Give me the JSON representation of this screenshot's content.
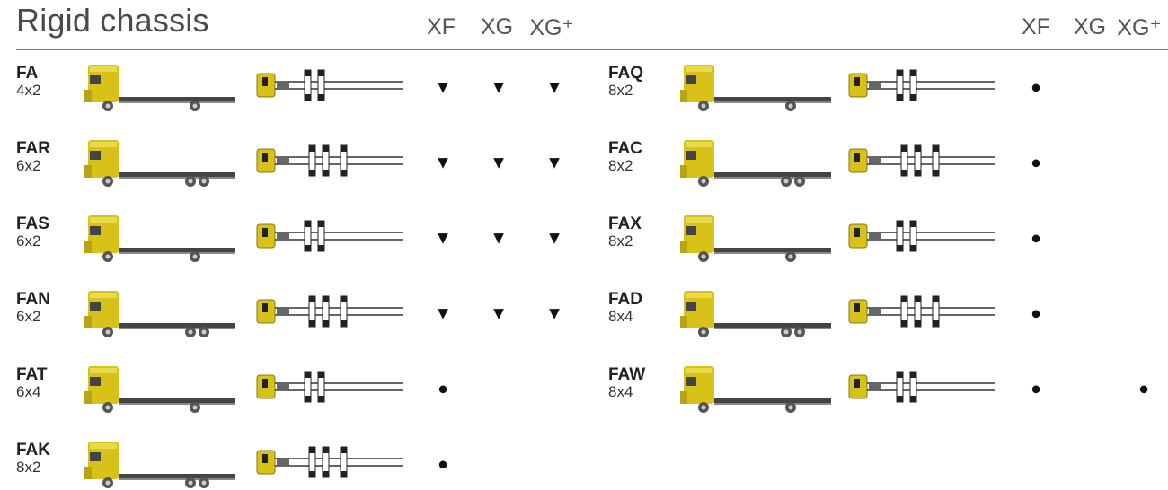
{
  "header": {
    "title": "Rigid chassis",
    "columns_left": [
      "XF",
      "XG",
      "XG⁺"
    ],
    "columns_right": [
      "XF",
      "XG",
      "XG⁺"
    ]
  },
  "left": [
    {
      "code": "FA",
      "axles": "4x2",
      "availability": [
        "▼",
        "▼",
        "▼"
      ]
    },
    {
      "code": "FAR",
      "axles": "6x2",
      "availability": [
        "▼",
        "▼",
        "▼"
      ]
    },
    {
      "code": "FAS",
      "axles": "6x2",
      "availability": [
        "▼",
        "▼",
        "▼"
      ]
    },
    {
      "code": "FAN",
      "axles": "6x2",
      "availability": [
        "▼",
        "▼",
        "▼"
      ]
    },
    {
      "code": "FAT",
      "axles": "6x4",
      "availability": [
        "●",
        null,
        null
      ]
    },
    {
      "code": "FAK",
      "axles": "8x2",
      "availability": [
        "●",
        null,
        null
      ]
    }
  ],
  "right": [
    {
      "code": "FAQ",
      "axles": "8x2",
      "availability": [
        "●",
        null,
        null
      ]
    },
    {
      "code": "FAC",
      "axles": "8x2",
      "availability": [
        "●",
        null,
        null
      ]
    },
    {
      "code": "FAX",
      "axles": "8x2",
      "availability": [
        "●",
        null,
        null
      ]
    },
    {
      "code": "FAD",
      "axles": "8x4",
      "availability": [
        "●",
        null,
        null
      ]
    },
    {
      "code": "FAW",
      "axles": "8x4",
      "availability": [
        "●",
        null,
        "●"
      ]
    }
  ]
}
